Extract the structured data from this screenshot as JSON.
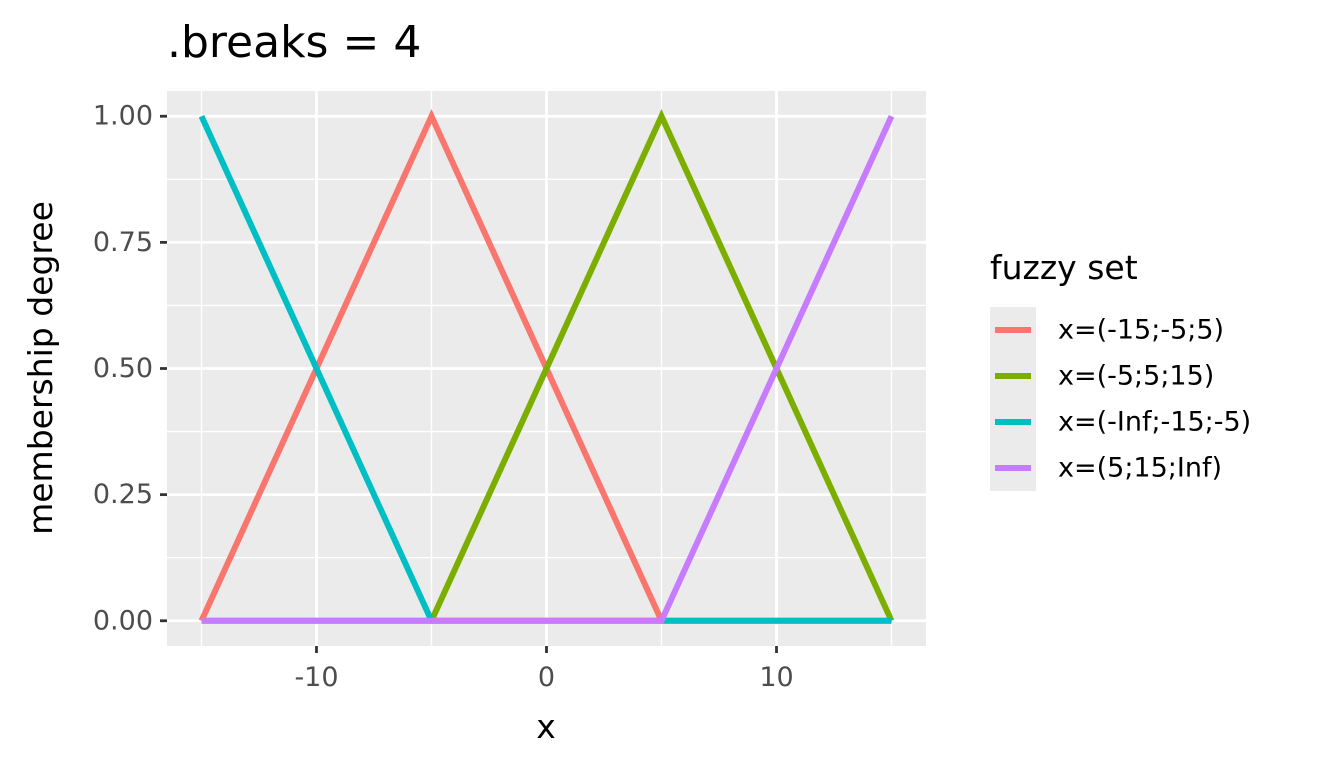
{
  "chart_data": {
    "type": "line",
    "title": ".breaks = 4",
    "xlabel": "x",
    "ylabel": "membership degree",
    "xlim": [
      -16.5,
      16.5
    ],
    "ylim": [
      -0.05,
      1.05
    ],
    "x_ticks": [
      -10,
      0,
      10
    ],
    "x_tick_labels": [
      "-10",
      "0",
      "10"
    ],
    "x_minor_ticks": [
      -15,
      -5,
      5,
      15
    ],
    "y_ticks": [
      0,
      0.25,
      0.5,
      0.75,
      1
    ],
    "y_tick_labels": [
      "0.00",
      "0.25",
      "0.50",
      "0.75",
      "1.00"
    ],
    "y_minor_ticks": [
      0.125,
      0.375,
      0.625,
      0.875
    ],
    "grid": true,
    "panel_background": "#ebebeb",
    "legend_title": "fuzzy set",
    "legend_position": "right",
    "series": [
      {
        "name": "x=(-15;-5;5)",
        "color": "#f8766d",
        "x": [
          -15,
          -5,
          5,
          15
        ],
        "y": [
          0,
          1,
          0,
          0
        ]
      },
      {
        "name": "x=(-5;5;15)",
        "color": "#7cae00",
        "x": [
          -15,
          -5,
          5,
          15
        ],
        "y": [
          0,
          0,
          1,
          0
        ]
      },
      {
        "name": "x=(-Inf;-15;-5)",
        "color": "#00bfc4",
        "x": [
          -15,
          -5,
          5,
          15
        ],
        "y": [
          1,
          0,
          0,
          0
        ]
      },
      {
        "name": "x=(5;15;Inf)",
        "color": "#c77cff",
        "x": [
          -15,
          -5,
          5,
          15
        ],
        "y": [
          0,
          0,
          0,
          1
        ]
      }
    ]
  }
}
